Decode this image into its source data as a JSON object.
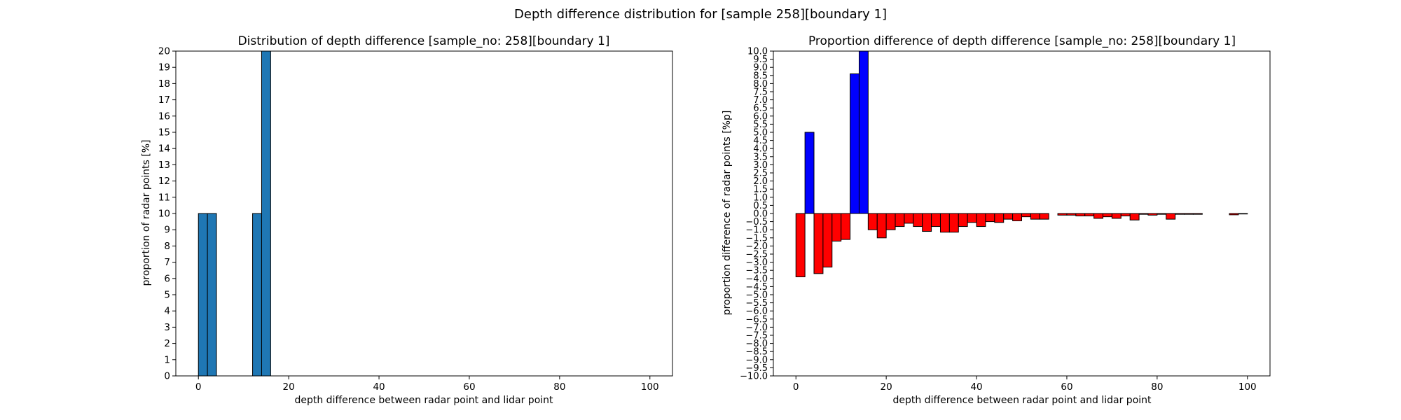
{
  "figure": {
    "suptitle": "Depth difference distribution for [sample 258][boundary 1]"
  },
  "chart_data": [
    {
      "type": "bar",
      "title": "Distribution of depth difference [sample_no: 258][boundary 1]",
      "xlabel": "depth difference between radar point and lidar point",
      "ylabel": "proportion of radar points [%]",
      "xlim": [
        -5,
        105
      ],
      "ylim": [
        0,
        20
      ],
      "xticks": [
        0,
        20,
        40,
        60,
        80,
        100
      ],
      "yticks": [
        0,
        1,
        2,
        3,
        4,
        5,
        6,
        7,
        8,
        9,
        10,
        11,
        12,
        13,
        14,
        15,
        16,
        17,
        18,
        19,
        20
      ],
      "bin_width": 2,
      "bar_color": "#1f77b4",
      "edge_color": "#000000",
      "bins": [
        0,
        2,
        12,
        14
      ],
      "values": [
        10,
        10,
        10,
        20
      ],
      "grid": false
    },
    {
      "type": "bar",
      "title": "Proportion difference of depth difference [sample_no: 258][boundary 1]",
      "xlabel": "depth difference between radar point and lidar point",
      "ylabel": "proportion difference of radar points [%p]",
      "xlim": [
        -5,
        105
      ],
      "ylim": [
        -10,
        10
      ],
      "xticks": [
        0,
        20,
        40,
        60,
        80,
        100
      ],
      "ytick_step": 0.5,
      "bin_width": 2,
      "positive_color": "#0000ff",
      "negative_color": "#ff0000",
      "edge_color": "#000000",
      "bins": [
        0,
        2,
        4,
        6,
        8,
        10,
        12,
        14,
        16,
        18,
        20,
        22,
        24,
        26,
        28,
        30,
        32,
        34,
        36,
        38,
        40,
        42,
        44,
        46,
        48,
        50,
        52,
        54,
        56,
        58,
        60,
        62,
        64,
        66,
        68,
        70,
        72,
        74,
        76,
        78,
        80,
        82,
        84,
        86,
        88,
        90,
        92,
        94,
        96,
        98
      ],
      "values": [
        -3.9,
        5.0,
        -3.7,
        -3.3,
        -1.7,
        -1.6,
        8.6,
        10.0,
        -1.0,
        -1.5,
        -1.0,
        -0.8,
        -0.6,
        -0.8,
        -1.1,
        -0.8,
        -1.15,
        -1.15,
        -0.8,
        -0.55,
        -0.8,
        -0.5,
        -0.55,
        -0.35,
        -0.45,
        -0.2,
        -0.35,
        -0.35,
        0,
        -0.1,
        -0.1,
        -0.15,
        -0.15,
        -0.3,
        -0.2,
        -0.3,
        -0.15,
        -0.4,
        -0.05,
        -0.1,
        -0.05,
        -0.35,
        -0.05,
        -0.05,
        -0.05,
        0,
        0,
        0,
        -0.08,
        -0.03
      ],
      "grid": false
    }
  ]
}
